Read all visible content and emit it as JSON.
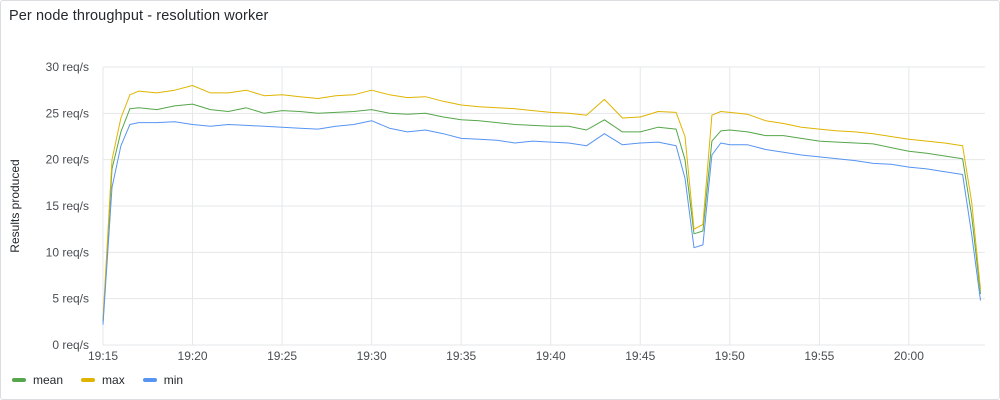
{
  "panel": {
    "title": "Per node throughput - resolution worker"
  },
  "chart_data": {
    "type": "line",
    "title": "Per node throughput - resolution worker",
    "ylabel": "Results produced",
    "xlabel": "",
    "ylim": [
      0,
      30
    ],
    "yticks": [
      0,
      5,
      10,
      15,
      20,
      25,
      30
    ],
    "yunit": " req/s",
    "ytick_labels": [
      "0 req/s",
      "5 req/s",
      "10 req/s",
      "15 req/s",
      "20 req/s",
      "25 req/s",
      "30 req/s"
    ],
    "xlim": [
      "19:15",
      "20:04"
    ],
    "xticks": [
      "19:15",
      "19:20",
      "19:25",
      "19:30",
      "19:35",
      "19:40",
      "19:45",
      "19:50",
      "19:55",
      "20:00"
    ],
    "grid": true,
    "legend_position": "bottom-left",
    "x": [
      "19:15",
      "19:15:30",
      "19:16",
      "19:16:30",
      "19:17",
      "19:18",
      "19:19",
      "19:20",
      "19:21",
      "19:22",
      "19:23",
      "19:24",
      "19:25",
      "19:26",
      "19:27",
      "19:28",
      "19:29",
      "19:30",
      "19:31",
      "19:32",
      "19:33",
      "19:34",
      "19:35",
      "19:36",
      "19:37",
      "19:38",
      "19:39",
      "19:40",
      "19:41",
      "19:42",
      "19:43",
      "19:44",
      "19:45",
      "19:46",
      "19:47",
      "19:47:30",
      "19:48",
      "19:48:30",
      "19:49",
      "19:49:30",
      "19:50",
      "19:51",
      "19:52",
      "19:53",
      "19:54",
      "19:55",
      "19:56",
      "19:57",
      "19:58",
      "19:59",
      "20:00",
      "20:01",
      "20:02",
      "20:03",
      "20:03:30",
      "20:04"
    ],
    "series": [
      {
        "name": "mean",
        "color": "#56a64b",
        "values": [
          2.5,
          19,
          23,
          25.5,
          25.6,
          25.4,
          25.8,
          26,
          25.4,
          25.2,
          25.6,
          25,
          25.3,
          25.2,
          25,
          25.1,
          25.2,
          25.4,
          25,
          24.9,
          25,
          24.6,
          24.3,
          24.2,
          24,
          23.8,
          23.7,
          23.6,
          23.6,
          23.2,
          24.3,
          23,
          23,
          23.5,
          23.3,
          20,
          12,
          12.3,
          22,
          23.1,
          23.2,
          23,
          22.6,
          22.6,
          22.3,
          22,
          21.9,
          21.8,
          21.7,
          21.3,
          20.9,
          20.7,
          20.4,
          20.1,
          14,
          5.5
        ]
      },
      {
        "name": "max",
        "color": "#e0b400",
        "values": [
          2.8,
          20,
          24.5,
          27,
          27.4,
          27.2,
          27.5,
          28,
          27.2,
          27.2,
          27.5,
          26.9,
          27,
          26.8,
          26.6,
          26.9,
          27,
          27.5,
          27,
          26.7,
          26.8,
          26.3,
          25.9,
          25.7,
          25.6,
          25.5,
          25.3,
          25.1,
          25,
          24.8,
          26.5,
          24.5,
          24.6,
          25.2,
          25.1,
          22.5,
          12.5,
          13,
          24.8,
          25.2,
          25.1,
          24.9,
          24.2,
          23.9,
          23.5,
          23.3,
          23.1,
          23,
          22.8,
          22.5,
          22.2,
          22,
          21.8,
          21.5,
          15.5,
          6
        ]
      },
      {
        "name": "min",
        "color": "#5794f2",
        "values": [
          2.2,
          17,
          21.5,
          23.8,
          24,
          24,
          24.1,
          23.8,
          23.6,
          23.8,
          23.7,
          23.6,
          23.5,
          23.4,
          23.3,
          23.6,
          23.8,
          24.2,
          23.4,
          23,
          23.2,
          22.8,
          22.3,
          22.2,
          22.1,
          21.8,
          22,
          21.9,
          21.8,
          21.5,
          22.8,
          21.6,
          21.8,
          21.9,
          21.5,
          18,
          10.5,
          10.8,
          20.5,
          21.8,
          21.6,
          21.6,
          21.1,
          20.8,
          20.5,
          20.3,
          20.1,
          19.9,
          19.6,
          19.5,
          19.2,
          19,
          18.7,
          18.4,
          12,
          4.8
        ]
      }
    ]
  }
}
